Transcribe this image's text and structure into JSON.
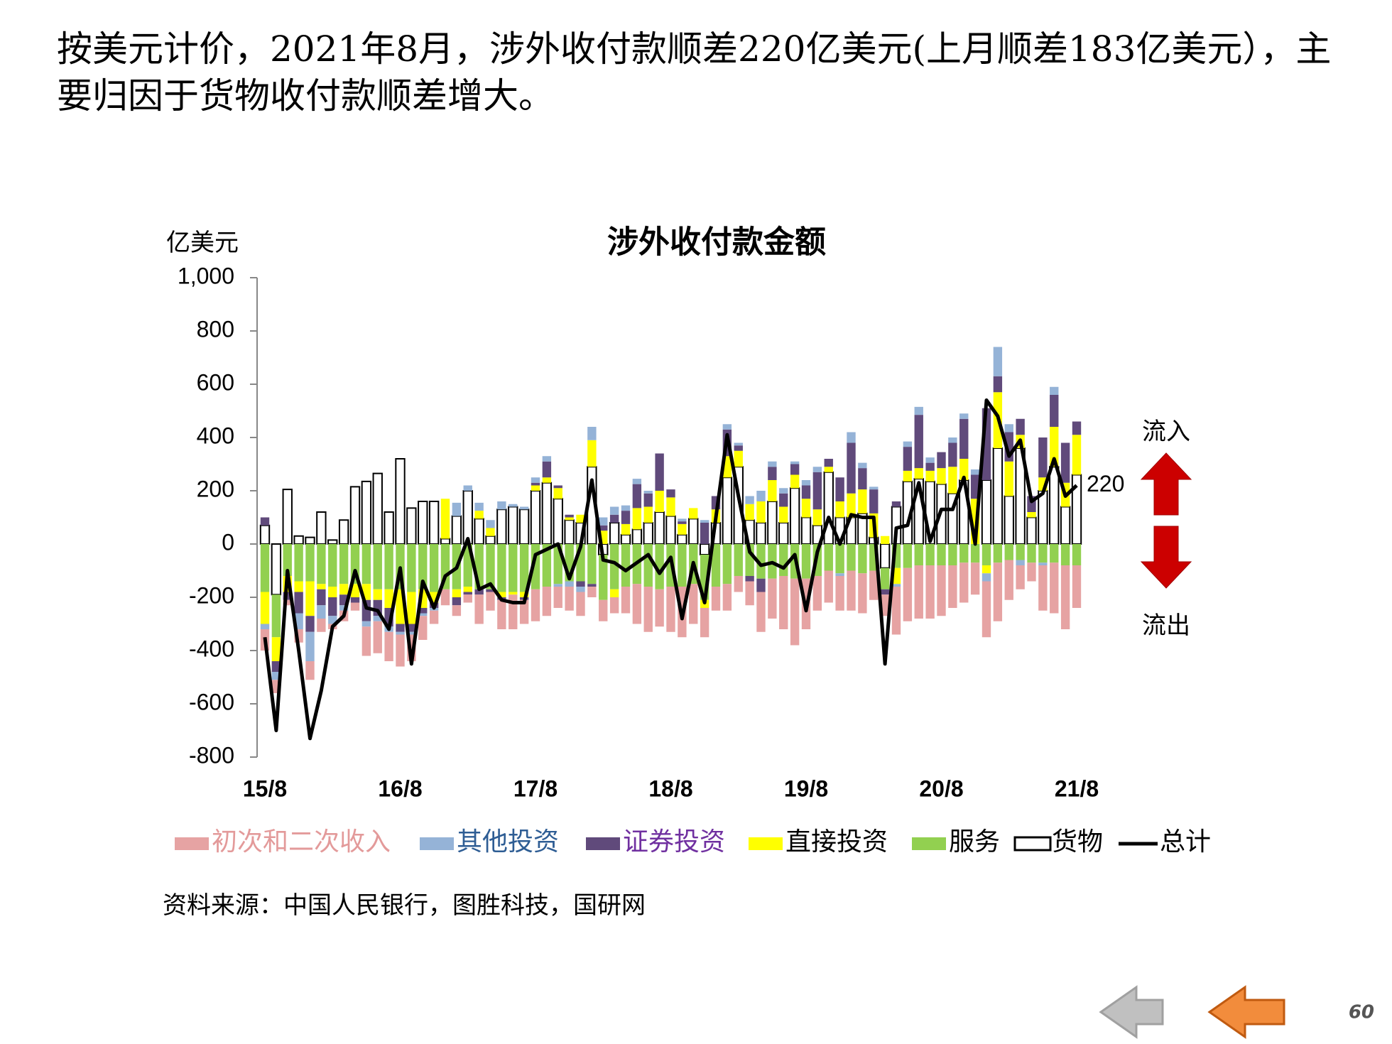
{
  "header": {
    "title": "按美元计价，2021年8月，涉外收付款顺差220亿美元(上月顺差183亿美元），主要归因于货物收付款顺差增大。"
  },
  "chart_data": {
    "type": "bar",
    "stacked": true,
    "title": "涉外收付款金额",
    "ylabel": "亿美元",
    "categories": [
      "15/8",
      null,
      null,
      null,
      null,
      null,
      null,
      null,
      null,
      null,
      null,
      null,
      "16/8",
      null,
      null,
      null,
      null,
      null,
      null,
      null,
      null,
      null,
      null,
      null,
      "17/8",
      null,
      null,
      null,
      null,
      null,
      null,
      null,
      null,
      null,
      null,
      null,
      "18/8",
      null,
      null,
      null,
      null,
      null,
      null,
      null,
      null,
      null,
      null,
      null,
      "19/8",
      null,
      null,
      null,
      null,
      null,
      null,
      null,
      null,
      null,
      null,
      null,
      "20/8",
      null,
      null,
      null,
      null,
      null,
      null,
      null,
      null,
      null,
      null,
      null,
      "21/8"
    ],
    "ylim": [
      -800,
      1000
    ],
    "yticks": [
      -800,
      -600,
      -400,
      -200,
      0,
      200,
      400,
      600,
      800,
      {
        "value": 1000,
        "label": "1,000"
      }
    ],
    "series": [
      {
        "name": "初次和二次收入",
        "color": "#e6a3a3",
        "values": [
          -80,
          -50,
          -20,
          -50,
          -70,
          -50,
          -20,
          -40,
          -30,
          -110,
          -120,
          -110,
          -120,
          -100,
          -90,
          -50,
          -60,
          -40,
          -30,
          -110,
          -70,
          -110,
          -130,
          -90,
          -120,
          -110,
          -80,
          -90,
          -90,
          -40,
          -80,
          -60,
          -100,
          -150,
          -170,
          -140,
          -170,
          -190,
          -150,
          -110,
          -90,
          -100,
          -60,
          -90,
          -150,
          -150,
          -200,
          -250,
          -190,
          -130,
          -120,
          -130,
          -150,
          -150,
          -110,
          -80,
          -180,
          -200,
          -200,
          -200,
          -190,
          -160,
          -150,
          -120,
          -210,
          -220,
          -150,
          -90,
          -70,
          -170,
          -190,
          -240,
          -160
        ]
      },
      {
        "name": "其他投资",
        "color": "#95b3d7",
        "values": [
          -20,
          -30,
          0,
          -60,
          -110,
          -50,
          -30,
          -20,
          0,
          -20,
          -20,
          -20,
          -10,
          -10,
          -10,
          -10,
          0,
          50,
          20,
          30,
          30,
          30,
          10,
          10,
          20,
          20,
          -10,
          -20,
          -20,
          50,
          30,
          30,
          20,
          20,
          10,
          0,
          0,
          10,
          0,
          10,
          0,
          20,
          10,
          30,
          40,
          20,
          20,
          10,
          20,
          20,
          0,
          -10,
          40,
          20,
          10,
          0,
          -10,
          20,
          30,
          20,
          0,
          20,
          20,
          20,
          -30,
          110,
          30,
          -20,
          0,
          -10,
          30,
          0,
          0
        ]
      },
      {
        "name": "证券投资",
        "color": "#604a7b",
        "values": [
          30,
          -40,
          -30,
          -80,
          -60,
          -60,
          -70,
          -40,
          -20,
          -80,
          -60,
          -70,
          -30,
          -30,
          -20,
          -20,
          0,
          -30,
          -10,
          -20,
          -10,
          -10,
          0,
          -10,
          10,
          60,
          10,
          10,
          -20,
          -10,
          20,
          30,
          50,
          90,
          50,
          140,
          30,
          10,
          0,
          80,
          50,
          100,
          20,
          -20,
          -50,
          50,
          50,
          40,
          50,
          140,
          30,
          90,
          190,
          80,
          90,
          -20,
          20,
          90,
          200,
          30,
          60,
          90,
          150,
          90,
          270,
          60,
          110,
          60,
          60,
          150,
          120,
          150,
          50
        ]
      },
      {
        "name": "直接投资",
        "color": "#ffff00",
        "values": [
          -120,
          -90,
          -60,
          -40,
          -130,
          -20,
          -40,
          -40,
          -50,
          -60,
          -40,
          -70,
          -130,
          -120,
          -70,
          -40,
          150,
          -30,
          -20,
          30,
          30,
          -20,
          -10,
          -20,
          20,
          20,
          40,
          10,
          30,
          100,
          50,
          -30,
          40,
          80,
          60,
          80,
          70,
          40,
          40,
          -30,
          50,
          80,
          60,
          60,
          80,
          80,
          60,
          50,
          70,
          60,
          20,
          60,
          90,
          90,
          90,
          30,
          -60,
          40,
          40,
          40,
          60,
          100,
          80,
          170,
          -30,
          210,
          130,
          50,
          20,
          50,
          150,
          90,
          150
        ]
      },
      {
        "name": "服务",
        "color": "#92d050",
        "values": [
          -180,
          -160,
          -120,
          -140,
          -140,
          -150,
          -160,
          -150,
          -150,
          -150,
          -170,
          -170,
          -170,
          -180,
          -170,
          -180,
          -170,
          -170,
          -160,
          -170,
          -170,
          -180,
          -180,
          -180,
          -170,
          -160,
          -150,
          -140,
          -140,
          -150,
          -170,
          -170,
          -160,
          -150,
          -160,
          -170,
          -160,
          -160,
          -150,
          -170,
          -160,
          -150,
          -120,
          -120,
          -130,
          -130,
          -120,
          -130,
          -130,
          -120,
          -100,
          -110,
          -100,
          -110,
          -100,
          -80,
          -90,
          -90,
          -80,
          -80,
          -80,
          -80,
          -70,
          -70,
          -80,
          -70,
          -60,
          -60,
          -70,
          -70,
          -70,
          -80,
          -80
        ]
      },
      {
        "name": "货物",
        "color": "#ffffff",
        "edgecolor": "#000000",
        "values": [
          70,
          -190,
          205,
          30,
          25,
          120,
          15,
          90,
          215,
          235,
          265,
          120,
          320,
          135,
          160,
          160,
          20,
          105,
          200,
          95,
          30,
          130,
          140,
          130,
          200,
          230,
          170,
          90,
          80,
          290,
          -40,
          80,
          35,
          55,
          80,
          120,
          105,
          35,
          95,
          -40,
          80,
          250,
          290,
          90,
          80,
          160,
          80,
          210,
          100,
          70,
          270,
          100,
          100,
          115,
          25,
          -90,
          140,
          235,
          245,
          235,
          225,
          190,
          240,
          0,
          240,
          360,
          180,
          360,
          100,
          200,
          290,
          140,
          260
        ]
      },
      {
        "name": "总计",
        "type": "line",
        "color": "#000000",
        "values": [
          -350,
          -700,
          -100,
          -400,
          -730,
          -550,
          -310,
          -270,
          -100,
          -240,
          -250,
          -320,
          -90,
          -450,
          -140,
          -240,
          -120,
          -90,
          20,
          -170,
          -150,
          -210,
          -220,
          -220,
          -40,
          -20,
          0,
          -130,
          -10,
          240,
          -60,
          -70,
          -100,
          -70,
          -40,
          -110,
          -50,
          -280,
          -70,
          -220,
          100,
          410,
          180,
          -30,
          -80,
          -70,
          -90,
          -40,
          -250,
          -30,
          100,
          0,
          110,
          100,
          100,
          -450,
          60,
          70,
          230,
          10,
          130,
          130,
          250,
          0,
          540,
          480,
          330,
          390,
          160,
          190,
          320,
          180,
          220
        ]
      }
    ],
    "annotations": [
      "流入",
      "流出"
    ],
    "source": "资料来源：中国人民银行，图胜科技，国研网"
  },
  "page_number": "60"
}
